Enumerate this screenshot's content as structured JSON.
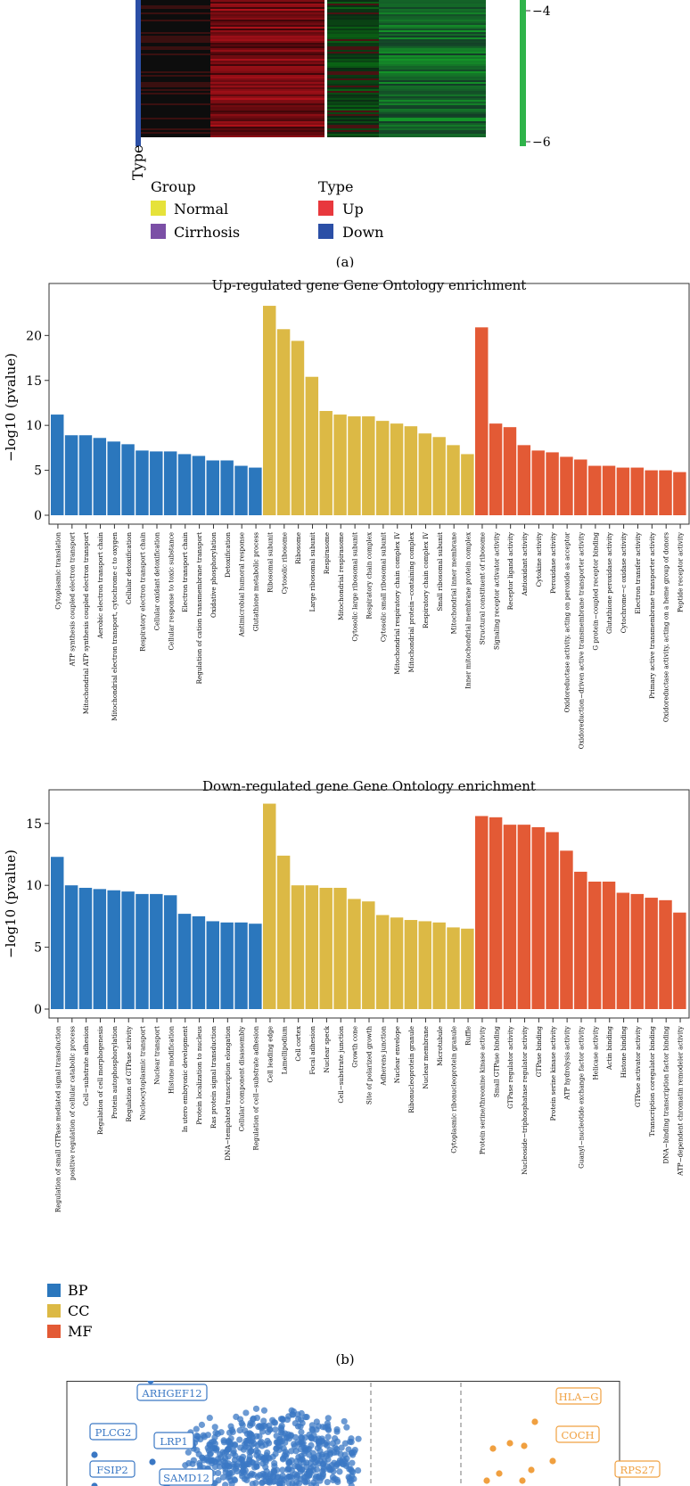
{
  "colors": {
    "bp": "#2b77bd",
    "cc": "#dcb945",
    "mf": "#e35a35",
    "up": "#e8383d",
    "down": "#2b4fa6",
    "normal": "#e6e23a",
    "cirrhosis": "#7b4fa6",
    "heat_green": "#2fb34a",
    "heat_red": "#b01a2a",
    "volcano_down": "#3b78c4",
    "volcano_up": "#f0a040"
  },
  "panel_a": {
    "scale_labels": [
      "−4",
      "−6"
    ],
    "type_axis_label": "Type",
    "group_legend": {
      "title": "Group",
      "items": [
        "Normal",
        "Cirrhosis"
      ]
    },
    "type_legend": {
      "title": "Type",
      "items": [
        "Up",
        "Down"
      ]
    },
    "caption": "(a)"
  },
  "panel_b": {
    "caption": "(b)",
    "legend": [
      "BP",
      "CC",
      "MF"
    ]
  },
  "panel_c": {
    "labels": [
      "ARHGEF12",
      "PLCG2",
      "LRP1",
      "FSIP2",
      "SAMD12",
      "HLA−G",
      "COCH",
      "RPS27"
    ]
  },
  "chart_data": [
    {
      "type": "bar",
      "title": "Up-regulated gene Gene Ontology enrichment",
      "ylabel": "−log10 (pvalue)",
      "ylim": [
        0,
        24
      ],
      "yticks": [
        0,
        5,
        10,
        15,
        20
      ],
      "categories": [
        "Cytoplasmic translation",
        "ATP synthesis coupled electron transport",
        "Mitochondrial ATP synthesis coupled electron transport",
        "Aerobic electron transport chain",
        "Mitochondrial electron transport, cytochrome c to oxygen",
        "Cellular detoxification",
        "Respiratory electron transport chain",
        "Cellular oxidant detoxification",
        "Cellular response to toxic substance",
        "Electron transport chain",
        "Regulation of cation transmembrane transport",
        "Oxidative phosphorylation",
        "Detoxification",
        "Antimicrobial humoral response",
        "Glutathione metabolic process",
        "Ribosomal subunit",
        "Cytosolic ribosome",
        "Ribosome",
        "Large ribosomal subunit",
        "Respirasome",
        "Mitochondrial respirasome",
        "Cytosolic large ribosomal subunit",
        "Respiratory chain complex",
        "Cytosolic small ribosomal subunit",
        "Mitochondrial respiratory chain complex IV",
        "Mitochondrial protein−containing complex",
        "Respiratory chain complex IV",
        "Small ribosomal subunit",
        "Mitochondrial inner membrane",
        "Inner mitochondrial membrane protein complex",
        "Structural constituent of ribosome",
        "Signaling receptor activator activity",
        "Receptor ligand activity",
        "Antioxidant activity",
        "Cytokine activity",
        "Peroxidase activity",
        "Oxidoreductase activity, acting on peroxide as acceptor",
        "Oxidoreduction−driven active transmembrane transporter activity",
        "G protein−coupled receptor binding",
        "Glutathione peroxidase activity",
        "Cytochrome−c oxidase activity",
        "Electron transfer activity",
        "Primary active transmembrane transporter activity",
        "Oxidoreductase activity, acting on a heme group of donors",
        "Peptide receptor activity"
      ],
      "values": [
        11.2,
        8.9,
        8.9,
        8.6,
        8.2,
        7.9,
        7.2,
        7.1,
        7.1,
        6.8,
        6.6,
        6.1,
        6.1,
        5.5,
        5.3,
        23.3,
        20.7,
        19.4,
        15.4,
        11.6,
        11.2,
        11.0,
        11.0,
        10.5,
        10.2,
        9.9,
        9.1,
        8.7,
        7.8,
        6.8,
        20.9,
        10.2,
        9.8,
        7.8,
        7.2,
        7.0,
        6.5,
        6.2,
        5.5,
        5.5,
        5.3,
        5.3,
        5.0,
        5.0,
        4.8
      ],
      "groups": [
        "BP",
        "BP",
        "BP",
        "BP",
        "BP",
        "BP",
        "BP",
        "BP",
        "BP",
        "BP",
        "BP",
        "BP",
        "BP",
        "BP",
        "BP",
        "CC",
        "CC",
        "CC",
        "CC",
        "CC",
        "CC",
        "CC",
        "CC",
        "CC",
        "CC",
        "CC",
        "CC",
        "CC",
        "CC",
        "CC",
        "MF",
        "MF",
        "MF",
        "MF",
        "MF",
        "MF",
        "MF",
        "MF",
        "MF",
        "MF",
        "MF",
        "MF",
        "MF",
        "MF",
        "MF"
      ]
    },
    {
      "type": "bar",
      "title": "Down-regulated gene Gene Ontology enrichment",
      "ylabel": "−log10 (pvalue)",
      "ylim": [
        0,
        17
      ],
      "yticks": [
        0,
        5,
        10,
        15
      ],
      "categories": [
        "Regulation of small GTPase mediated signal transduction",
        "positive regulation of cellular catabolic process",
        "Cell−substrate adhesion",
        "Regulation of cell morphogenesis",
        "Protein autophosphorylation",
        "Regulation of GTPase activity",
        "Nucleocytoplasmic transport",
        "Nuclear transport",
        "Histone modification",
        "In utero embryonic development",
        "Protein localization to nucleus",
        "Ras protein signal transduction",
        "DNA−templated transcription elongation",
        "Cellular component disassembly",
        "Regulation of cell−substrate adhesion",
        "Cell leading edge",
        "Lamellipodium",
        "Cell cortex",
        "Focal adhesion",
        "Nuclear speck",
        "Cell−substrate junction",
        "Growth cone",
        "Site of polarized growth",
        "Adherens junction",
        "Nuclear envelope",
        "Ribonucleoprotein granule",
        "Nuclear membrane",
        "Microtubule",
        "Cytoplasmic ribonucleoprotein granule",
        "Ruffle",
        "Protein serine/threonine kinase activity",
        "Small GTPase binding",
        "GTPase regulator activity",
        "Nucleoside−triphosphatase regulator activity",
        "GTPase binding",
        "Protein serine kinase activity",
        "ATP hydrolysis activity",
        "Guanyl−nucleotide exchange factor activity",
        "Helicase activity",
        "Actin binding",
        "Histone binding",
        "GTPase activator activity",
        "Transcription coregulator binding",
        "DNA−binding transcription factor binding",
        "ATP−dependent chromatin remodeler activity"
      ],
      "values": [
        12.3,
        10.0,
        9.8,
        9.7,
        9.6,
        9.5,
        9.3,
        9.3,
        9.2,
        7.7,
        7.5,
        7.1,
        7.0,
        7.0,
        6.9,
        16.6,
        12.4,
        10.0,
        10.0,
        9.8,
        9.8,
        8.9,
        8.7,
        7.6,
        7.4,
        7.2,
        7.1,
        7.0,
        6.6,
        6.5,
        15.6,
        15.5,
        14.9,
        14.9,
        14.7,
        14.3,
        12.8,
        11.1,
        10.3,
        10.3,
        9.4,
        9.3,
        9.0,
        8.8,
        7.8
      ],
      "groups": [
        "BP",
        "BP",
        "BP",
        "BP",
        "BP",
        "BP",
        "BP",
        "BP",
        "BP",
        "BP",
        "BP",
        "BP",
        "BP",
        "BP",
        "BP",
        "CC",
        "CC",
        "CC",
        "CC",
        "CC",
        "CC",
        "CC",
        "CC",
        "CC",
        "CC",
        "CC",
        "CC",
        "CC",
        "CC",
        "CC",
        "MF",
        "MF",
        "MF",
        "MF",
        "MF",
        "MF",
        "MF",
        "MF",
        "MF",
        "MF",
        "MF",
        "MF",
        "MF",
        "MF",
        "MF"
      ]
    }
  ]
}
